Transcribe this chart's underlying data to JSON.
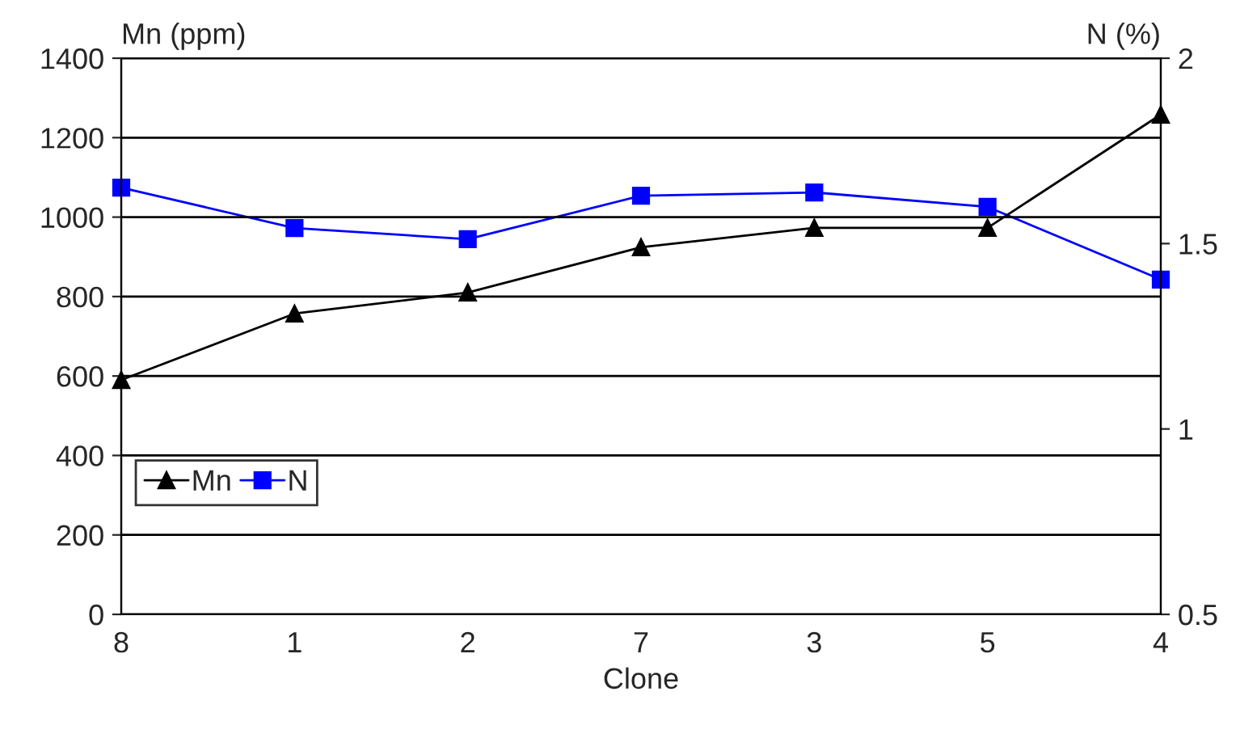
{
  "chart_data": {
    "type": "line",
    "xlabel": "Clone",
    "ylabel": "Mn (ppm)",
    "y2label": "N (%)",
    "categories": [
      "8",
      "1",
      "2",
      "7",
      "3",
      "5",
      "4"
    ],
    "series": [
      {
        "name": "Mn",
        "color": "#000000",
        "marker": "triangle",
        "values": [
          590,
          757,
          810,
          924,
          973,
          973,
          1258
        ]
      },
      {
        "name": "N",
        "color": "#0000ff",
        "marker": "square",
        "axis": "y2",
        "values": [
          1.651,
          1.542,
          1.512,
          1.629,
          1.638,
          1.599,
          1.403
        ]
      }
    ],
    "ylim": [
      0,
      1400
    ],
    "yticks": [
      0,
      200,
      400,
      600,
      800,
      1000,
      1200,
      1400
    ],
    "y2lim": [
      0.5,
      2
    ],
    "y2ticks": [
      0.5,
      1,
      1.5,
      2
    ],
    "grid": "y",
    "legend": "lower left",
    "line_style": "solid"
  }
}
